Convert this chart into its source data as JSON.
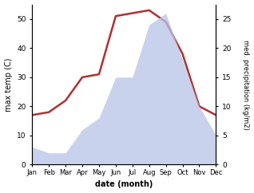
{
  "months": [
    "Jan",
    "Feb",
    "Mar",
    "Apr",
    "May",
    "Jun",
    "Jul",
    "Aug",
    "Sep",
    "Oct",
    "Nov",
    "Dec"
  ],
  "temperature": [
    17,
    18,
    22,
    30,
    31,
    51,
    52,
    53,
    49,
    38,
    20,
    17
  ],
  "precipitation": [
    3,
    2,
    2,
    6,
    8,
    15,
    15,
    24,
    26,
    18,
    10,
    5
  ],
  "temp_color": "#b03030",
  "precip_color_fill": "#b8c4e8",
  "temp_ylim": [
    0,
    55
  ],
  "precip_ylim": [
    0,
    27.5
  ],
  "temp_yticks": [
    0,
    10,
    20,
    30,
    40,
    50
  ],
  "precip_yticks": [
    0,
    5,
    10,
    15,
    20,
    25
  ],
  "xlabel": "date (month)",
  "ylabel_left": "max temp (C)",
  "ylabel_right": "med. precipitation (kg/m2)"
}
